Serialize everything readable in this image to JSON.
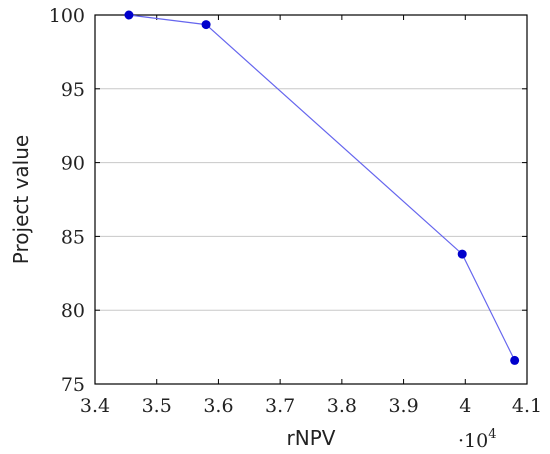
{
  "chart_data": {
    "type": "line",
    "title": "",
    "xlabel": "rNPV",
    "ylabel": "Project value",
    "x_multiplier_label": "·10",
    "x_multiplier_exponent": "4",
    "x_tick_labels": [
      "3.4",
      "3.5",
      "3.6",
      "3.7",
      "3.8",
      "3.9",
      "4",
      "4.1"
    ],
    "y_tick_labels": [
      "75",
      "80",
      "85",
      "90",
      "95",
      "100"
    ],
    "xlim": [
      34000,
      41000
    ],
    "ylim": [
      75,
      100
    ],
    "x_ticks": [
      34000,
      35000,
      36000,
      37000,
      38000,
      39000,
      40000,
      41000
    ],
    "y_ticks": [
      75,
      80,
      85,
      90,
      95,
      100
    ],
    "grid": "horizontal",
    "series": [
      {
        "color": "#0000cc",
        "line_color": "#6666ee",
        "x": [
          34550,
          35800,
          39950,
          40800
        ],
        "y": [
          100,
          99.35,
          83.8,
          76.6
        ]
      }
    ]
  }
}
